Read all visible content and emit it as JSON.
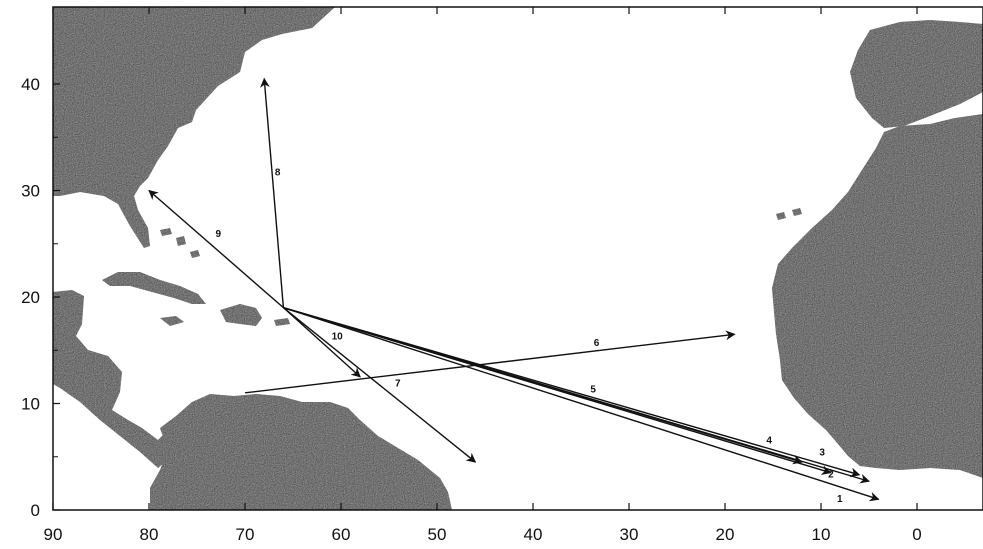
{
  "axes": {
    "x_ticks": [
      "90",
      "80",
      "70",
      "60",
      "50",
      "40",
      "30",
      "20",
      "10",
      "0"
    ],
    "y_ticks": [
      "0",
      "10",
      "20",
      "30",
      "40"
    ]
  },
  "routes": [
    {
      "label": "1",
      "from_lon": 66,
      "from_lat": 19,
      "to_lon": 4,
      "to_lat": 1
    },
    {
      "label": "2",
      "from_lon": 66,
      "from_lat": 19,
      "to_lon": 5,
      "to_lat": 2.7
    },
    {
      "label": "3",
      "from_lon": 66,
      "from_lat": 19,
      "to_lon": 6,
      "to_lat": 3.3
    },
    {
      "label": "4",
      "from_lon": 66,
      "from_lat": 19,
      "to_lon": 12,
      "to_lat": 4.5
    },
    {
      "label": "5",
      "from_lon": 66,
      "from_lat": 19,
      "to_lon": 9,
      "to_lat": 3.5
    },
    {
      "label": "6",
      "from_lon": 70,
      "from_lat": 11,
      "to_lon": 19,
      "to_lat": 16.5
    },
    {
      "label": "7",
      "from_lon": 66,
      "from_lat": 19,
      "to_lon": 46,
      "to_lat": 4.5
    },
    {
      "label": "8",
      "from_lon": 66,
      "from_lat": 19,
      "to_lon": 68,
      "to_lat": 40.5
    },
    {
      "label": "9",
      "from_lon": 66,
      "from_lat": 19,
      "to_lon": 80,
      "to_lat": 30
    },
    {
      "label": "10",
      "from_lon": 66,
      "from_lat": 19,
      "to_lon": 58,
      "to_lat": 12.5
    }
  ],
  "colors": {
    "land": "#3c3c3c",
    "sea": "#ffffff",
    "ink": "#111111"
  }
}
